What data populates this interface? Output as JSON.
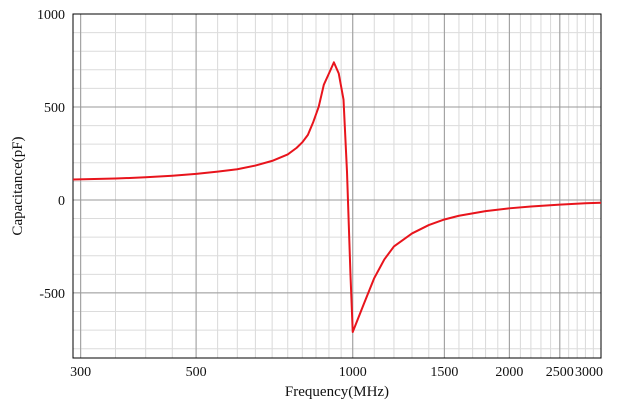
{
  "chart_data": {
    "type": "line",
    "xlabel": "Frequency(MHz)",
    "ylabel": "Capacitance(pF)",
    "xscale": "log",
    "xlim": [
      290,
      3000
    ],
    "ylim": [
      -850,
      1000
    ],
    "x_ticks": [
      300,
      500,
      1000,
      1500,
      2000,
      2500,
      3000
    ],
    "x_tick_labels": [
      "300",
      "500",
      "1000",
      "1500",
      "2000",
      "2500",
      "3000"
    ],
    "y_ticks": [
      -500,
      0,
      500,
      1000
    ],
    "y_tick_labels": [
      "-500",
      "0",
      "500",
      "1000"
    ],
    "grid": true,
    "legend": "none",
    "line_color": "#e8141c",
    "series": [
      {
        "x": [
          290,
          350,
          400,
          450,
          500,
          550,
          600,
          650,
          700,
          750,
          780,
          800,
          820,
          840,
          860,
          870,
          880,
          900,
          920,
          940,
          960,
          975,
          990,
          1000,
          1050,
          1100,
          1150,
          1200,
          1300,
          1400,
          1500,
          1600,
          1800,
          2000,
          2200,
          2500,
          2800,
          3000
        ],
        "y": [
          110,
          115,
          122,
          130,
          140,
          152,
          165,
          185,
          210,
          245,
          280,
          310,
          350,
          420,
          500,
          560,
          620,
          680,
          740,
          680,
          540,
          150,
          -400,
          -710,
          -560,
          -420,
          -320,
          -250,
          -180,
          -135,
          -105,
          -85,
          -60,
          -45,
          -35,
          -25,
          -18,
          -15
        ]
      }
    ]
  }
}
